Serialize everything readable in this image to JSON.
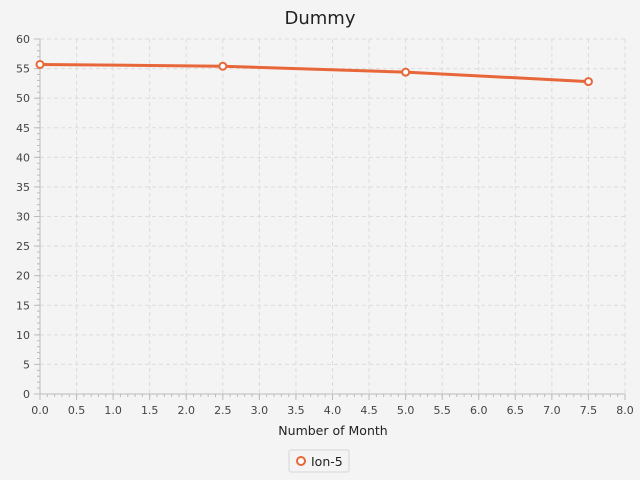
{
  "chart_data": {
    "type": "line",
    "title": "Dummy",
    "xlabel": "Number of Month",
    "ylabel": "",
    "xlim": [
      0,
      8
    ],
    "ylim": [
      0,
      60
    ],
    "x_major_step": 0.5,
    "x_minor_step": 0.1,
    "y_major_step": 5,
    "y_minor_step": 1,
    "x_tick_labels": [
      "0.0",
      "0.5",
      "1.0",
      "1.5",
      "2.0",
      "2.5",
      "3.0",
      "3.5",
      "4.0",
      "4.5",
      "5.0",
      "5.5",
      "6.0",
      "6.5",
      "7.0",
      "7.5",
      "8.0"
    ],
    "y_tick_labels": [
      "0",
      "5",
      "10",
      "15",
      "20",
      "25",
      "30",
      "35",
      "40",
      "45",
      "50",
      "55",
      "60"
    ],
    "grid": true,
    "legend_position": "bottom-center",
    "series": [
      {
        "name": "Ion-5",
        "color": "#e8673a",
        "marker": "hollow-circle",
        "x": [
          0,
          2.5,
          5.0,
          7.5
        ],
        "y": [
          55.7,
          55.4,
          54.4,
          52.8
        ]
      }
    ]
  },
  "colors": {
    "background": "#f4f4f4",
    "grid": "#dcdcdc",
    "axis": "#bcbcbc"
  }
}
